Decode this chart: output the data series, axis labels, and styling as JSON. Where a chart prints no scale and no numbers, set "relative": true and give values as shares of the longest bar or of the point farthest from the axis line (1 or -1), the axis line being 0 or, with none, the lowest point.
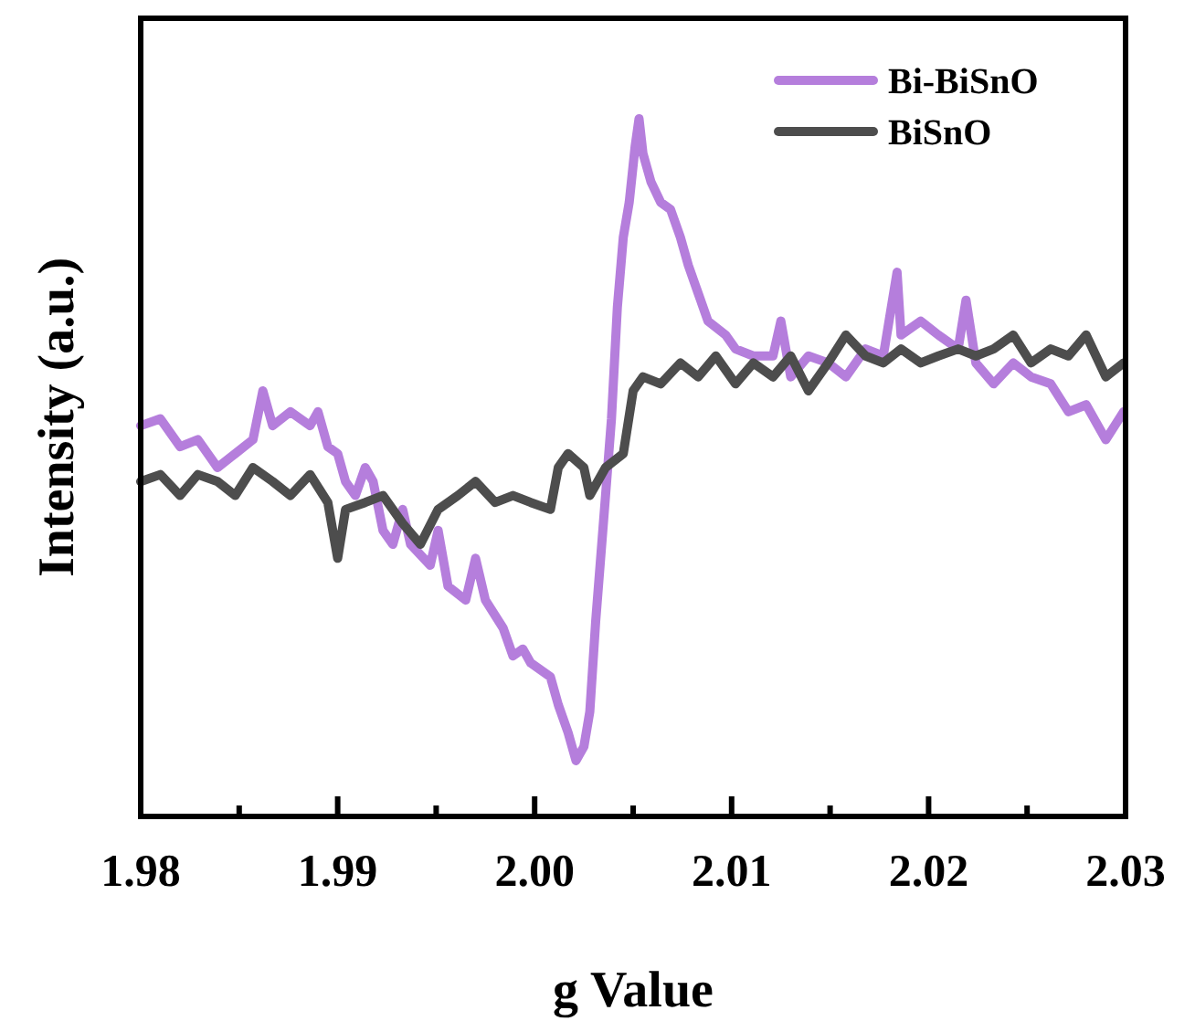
{
  "chart_data": {
    "type": "line",
    "xlabel": "g Value",
    "ylabel": "Intensity (a.u.)",
    "relative": true,
    "legend": "top right",
    "xlim": [
      1.98,
      2.03
    ],
    "xticks": [
      1.98,
      {
        "value": 1.985,
        "label": null
      },
      1.99,
      {
        "value": 1.995,
        "label": null
      },
      {
        "value": 2,
        "label": "2.00"
      },
      {
        "value": 2.005,
        "label": null
      },
      2.01,
      {
        "value": 2.015,
        "label": null
      },
      2.02,
      {
        "value": 2.025,
        "label": null
      },
      2.03
    ],
    "series": [
      {
        "name": "Bi-BiSnO",
        "color": "#b57edc",
        "x": [
          1.98,
          1.981,
          1.982,
          1.9829,
          1.9839,
          1.9848,
          1.9857,
          1.9862,
          1.9867,
          1.9876,
          1.9886,
          1.989,
          1.9895,
          1.99,
          1.9904,
          1.9909,
          1.9914,
          1.9918,
          1.9923,
          1.9928,
          1.9933,
          1.9937,
          1.9947,
          1.9951,
          1.9956,
          1.9965,
          1.997,
          1.9975,
          1.9984,
          1.9989,
          1.9994,
          1.9998,
          2.0008,
          2.0012,
          2.0017,
          2.0021,
          2.0025,
          2.0028,
          2.0031,
          2.0036,
          2.0039,
          2.0042,
          2.0045,
          2.0048,
          2.0051,
          2.0053,
          2.0055,
          2.0059,
          2.0064,
          2.0069,
          2.0074,
          2.0078,
          2.0083,
          2.0088,
          2.0097,
          2.0102,
          2.0111,
          2.0121,
          2.0125,
          2.013,
          2.0139,
          2.0149,
          2.0158,
          2.0168,
          2.0177,
          2.0184,
          2.0186,
          2.0196,
          2.0205,
          2.0215,
          2.0219,
          2.0224,
          2.0233,
          2.0243,
          2.0252,
          2.0262,
          2.0271,
          2.028,
          2.029,
          2.0299
        ],
        "values": [
          0.56,
          0.57,
          0.53,
          0.54,
          0.5,
          0.52,
          0.54,
          0.61,
          0.56,
          0.58,
          0.56,
          0.58,
          0.53,
          0.52,
          0.48,
          0.46,
          0.5,
          0.48,
          0.41,
          0.39,
          0.44,
          0.39,
          0.36,
          0.41,
          0.33,
          0.31,
          0.37,
          0.31,
          0.27,
          0.23,
          0.24,
          0.22,
          0.2,
          0.16,
          0.12,
          0.08,
          0.1,
          0.15,
          0.28,
          0.46,
          0.57,
          0.73,
          0.83,
          0.88,
          0.96,
          1,
          0.95,
          0.91,
          0.88,
          0.87,
          0.83,
          0.79,
          0.75,
          0.71,
          0.69,
          0.67,
          0.66,
          0.66,
          0.71,
          0.63,
          0.66,
          0.65,
          0.63,
          0.67,
          0.66,
          0.78,
          0.69,
          0.71,
          0.69,
          0.67,
          0.74,
          0.65,
          0.62,
          0.65,
          0.63,
          0.62,
          0.58,
          0.59,
          0.54,
          0.58
        ]
      },
      {
        "name": "BiSnO",
        "color": "#4d4d4d",
        "x": [
          1.98,
          1.981,
          1.982,
          1.9829,
          1.9839,
          1.9848,
          1.9857,
          1.9867,
          1.9876,
          1.9886,
          1.9895,
          1.99,
          1.9904,
          1.9914,
          1.9923,
          1.9933,
          1.9942,
          1.9951,
          1.9961,
          1.997,
          1.998,
          1.9989,
          1.9998,
          2.0008,
          2.0012,
          2.0017,
          2.0025,
          2.0028,
          2.0036,
          2.0045,
          2.005,
          2.0055,
          2.0064,
          2.0074,
          2.0083,
          2.0092,
          2.0102,
          2.0111,
          2.0121,
          2.013,
          2.0139,
          2.0149,
          2.0158,
          2.0168,
          2.0177,
          2.0186,
          2.0196,
          2.0205,
          2.0215,
          2.0224,
          2.0233,
          2.0243,
          2.0252,
          2.0262,
          2.0271,
          2.028,
          2.029,
          2.0299
        ],
        "values": [
          0.48,
          0.49,
          0.46,
          0.49,
          0.48,
          0.46,
          0.5,
          0.48,
          0.46,
          0.49,
          0.45,
          0.37,
          0.44,
          0.45,
          0.46,
          0.42,
          0.39,
          0.44,
          0.46,
          0.48,
          0.45,
          0.46,
          0.45,
          0.44,
          0.5,
          0.52,
          0.5,
          0.46,
          0.5,
          0.52,
          0.61,
          0.63,
          0.62,
          0.65,
          0.63,
          0.66,
          0.62,
          0.65,
          0.63,
          0.66,
          0.61,
          0.65,
          0.69,
          0.66,
          0.65,
          0.67,
          0.65,
          0.66,
          0.67,
          0.66,
          0.67,
          0.69,
          0.65,
          0.67,
          0.66,
          0.69,
          0.63,
          0.65
        ]
      }
    ]
  }
}
